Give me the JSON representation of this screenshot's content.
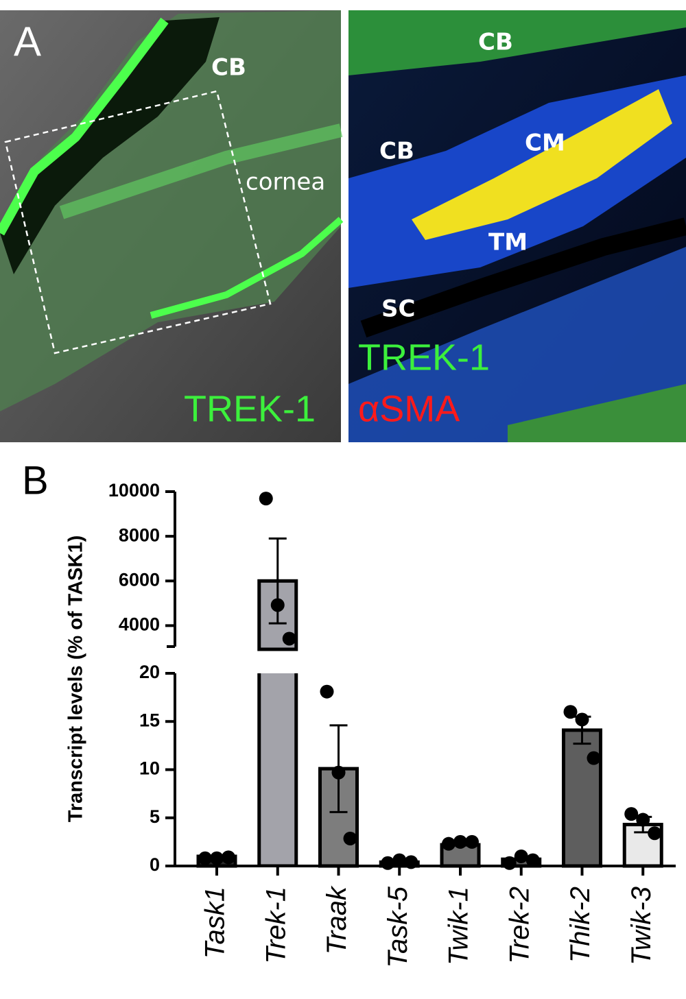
{
  "panels": {
    "a": {
      "label": "A",
      "texts": [
        "CB",
        "cornea"
      ],
      "stain": "TREK-1"
    },
    "b": {
      "texts": [
        "CB",
        "CB",
        "CM",
        "TM",
        "SC"
      ],
      "stains": [
        "TREK-1",
        "αSMA"
      ]
    },
    "chart_label": "B"
  },
  "chart_data": {
    "type": "bar",
    "y_label": "Transcript levels (% of TASK1)",
    "categories": [
      "Task1",
      "Trek-1",
      "Traak",
      "Task-5",
      "Twik-1",
      "Trek-2",
      "Thik-2",
      "Twik-3"
    ],
    "values": [
      1,
      6000,
      10.1,
      0.4,
      2.2,
      0.7,
      14.1,
      4.3
    ],
    "errors": [
      null,
      1900,
      4.5,
      null,
      null,
      null,
      1.4,
      0.8
    ],
    "points": [
      [
        0.8,
        0.8,
        0.9
      ],
      [
        9690,
        4920,
        3415
      ],
      [
        18.1,
        9.7,
        2.85
      ],
      [
        0.3,
        0.6,
        0.4
      ],
      [
        2.3,
        2.5,
        2.5
      ],
      [
        0.3,
        1.0,
        0.6
      ],
      [
        16.0,
        15.2,
        11.2
      ],
      [
        5.4,
        4.8,
        3.4
      ]
    ],
    "colors": [
      "#2a2a2a",
      "#a3a3aa",
      "#7d7d7d",
      "#555555",
      "#707070",
      "#606060",
      "#5e5e5e",
      "#e9e9e9"
    ],
    "ylim": [
      0,
      20
    ],
    "yticks": [
      0,
      5,
      10,
      15,
      20
    ],
    "axis_break": {
      "ylim": [
        3000,
        10000
      ],
      "yticks": [
        4000,
        6000,
        8000,
        10000
      ]
    }
  }
}
